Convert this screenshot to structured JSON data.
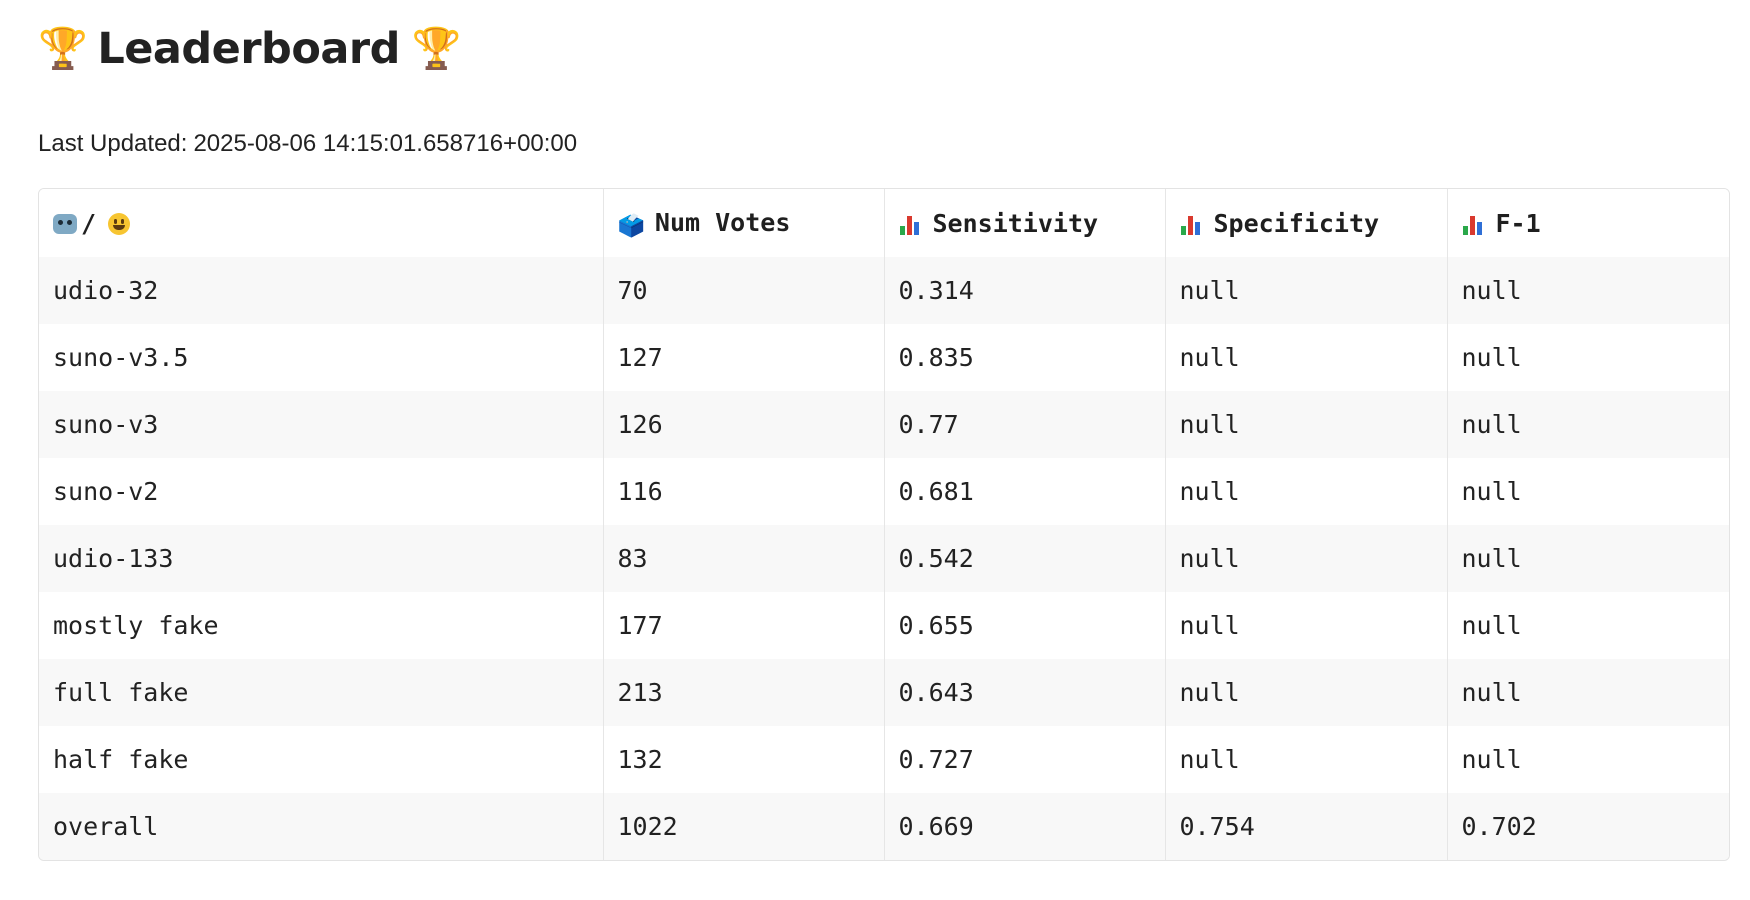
{
  "title": {
    "icon_left": "🏆",
    "text": "Leaderboard",
    "icon_right": "🏆"
  },
  "last_updated": {
    "label": "Last Updated:",
    "value": "2025-08-06 14:15:01.658716+00:00"
  },
  "table": {
    "headers": [
      {
        "icon": "robot-face-and-smiley-icon",
        "label": "/"
      },
      {
        "icon": "ballot-box-icon",
        "label": "Num Votes"
      },
      {
        "icon": "bar-chart-icon",
        "label": "Sensitivity"
      },
      {
        "icon": "bar-chart-icon",
        "label": "Specificity"
      },
      {
        "icon": "bar-chart-icon",
        "label": "F-1"
      }
    ],
    "rows": [
      [
        "udio-32",
        "70",
        "0.314",
        "null",
        "null"
      ],
      [
        "suno-v3.5",
        "127",
        "0.835",
        "null",
        "null"
      ],
      [
        "suno-v3",
        "126",
        "0.77",
        "null",
        "null"
      ],
      [
        "suno-v2",
        "116",
        "0.681",
        "null",
        "null"
      ],
      [
        "udio-133",
        "83",
        "0.542",
        "null",
        "null"
      ],
      [
        "mostly fake",
        "177",
        "0.655",
        "null",
        "null"
      ],
      [
        "full fake",
        "213",
        "0.643",
        "null",
        "null"
      ],
      [
        "half fake",
        "132",
        "0.727",
        "null",
        "null"
      ],
      [
        "overall",
        "1022",
        "0.669",
        "0.754",
        "0.702"
      ]
    ]
  }
}
